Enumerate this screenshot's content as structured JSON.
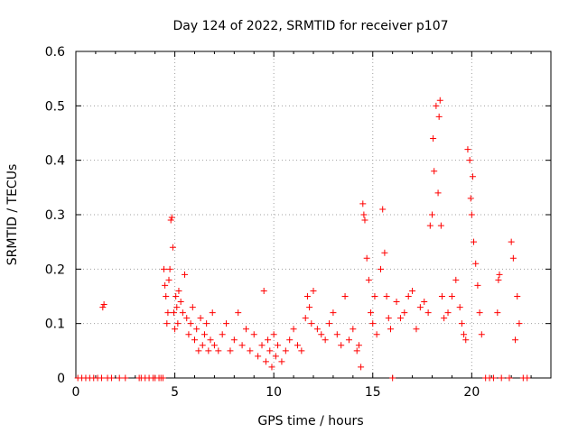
{
  "chart_data": {
    "type": "scatter",
    "title": "Day 124 of 2022, SRMTID for receiver p107",
    "xlabel": "GPS time / hours",
    "ylabel": "SRMTID / TECUs",
    "xlim": [
      0,
      24
    ],
    "ylim": [
      0,
      0.6
    ],
    "xticks": [
      0,
      5,
      10,
      15,
      20
    ],
    "yticks": [
      0,
      0.1,
      0.2,
      0.3,
      0.4,
      0.5,
      0.6
    ],
    "xtick_labels": [
      "0",
      "5",
      "10",
      "15",
      "20"
    ],
    "ytick_labels": [
      "0",
      "0.1",
      "0.2",
      "0.3",
      "0.4",
      "0.5",
      "0.6"
    ],
    "grid": true,
    "marker": "+",
    "color": "#ff0000",
    "series": [
      {
        "name": "SRMTID p107",
        "x": [
          0.1,
          0.3,
          0.5,
          0.7,
          0.9,
          1.1,
          1.3,
          1.36,
          1.42,
          1.6,
          1.8,
          2.2,
          2.5,
          3.2,
          3.3,
          3.5,
          3.7,
          3.9,
          4.0,
          4.2,
          4.3,
          4.4,
          4.45,
          4.5,
          4.55,
          4.6,
          4.65,
          4.7,
          4.75,
          4.8,
          4.85,
          4.9,
          4.95,
          5.0,
          5.05,
          5.1,
          5.15,
          5.2,
          5.3,
          5.4,
          5.5,
          5.6,
          5.7,
          5.8,
          5.9,
          6.0,
          6.1,
          6.2,
          6.3,
          6.4,
          6.5,
          6.6,
          6.7,
          6.8,
          6.9,
          7.0,
          7.2,
          7.4,
          7.6,
          7.8,
          8.0,
          8.2,
          8.4,
          8.6,
          8.8,
          9.0,
          9.2,
          9.4,
          9.5,
          9.6,
          9.7,
          9.8,
          9.9,
          10.0,
          10.1,
          10.2,
          10.4,
          10.6,
          10.8,
          11.0,
          11.2,
          11.4,
          11.6,
          11.7,
          11.8,
          11.9,
          12.0,
          12.2,
          12.4,
          12.6,
          12.8,
          13.0,
          13.2,
          13.4,
          13.6,
          13.8,
          14.0,
          14.2,
          14.3,
          14.4,
          14.5,
          14.55,
          14.6,
          14.7,
          14.8,
          14.9,
          15.0,
          15.1,
          15.2,
          15.4,
          15.5,
          15.6,
          15.7,
          15.8,
          15.9,
          16.0,
          16.2,
          16.4,
          16.6,
          16.8,
          17.0,
          17.2,
          17.4,
          17.6,
          17.8,
          17.9,
          18.0,
          18.05,
          18.1,
          18.2,
          18.3,
          18.35,
          18.4,
          18.45,
          18.5,
          18.6,
          18.8,
          19.0,
          19.2,
          19.4,
          19.5,
          19.6,
          19.7,
          19.8,
          19.9,
          19.95,
          20.0,
          20.05,
          20.1,
          20.2,
          20.3,
          20.4,
          20.5,
          20.7,
          20.9,
          21.1,
          21.3,
          21.35,
          21.4,
          21.5,
          21.9,
          22.0,
          22.1,
          22.2,
          22.3,
          22.4,
          22.6,
          22.8
        ],
        "y": [
          0,
          0,
          0,
          0,
          0,
          0,
          0,
          0.13,
          0.135,
          0,
          0,
          0,
          0,
          0,
          0,
          0,
          0,
          0,
          0,
          0,
          0,
          0.0,
          0.2,
          0.17,
          0.15,
          0.1,
          0.12,
          0.18,
          0.2,
          0.29,
          0.295,
          0.24,
          0.12,
          0.09,
          0.15,
          0.13,
          0.1,
          0.16,
          0.14,
          0.12,
          0.19,
          0.11,
          0.08,
          0.1,
          0.13,
          0.07,
          0.09,
          0.05,
          0.11,
          0.06,
          0.08,
          0.1,
          0.05,
          0.07,
          0.12,
          0.06,
          0.05,
          0.08,
          0.1,
          0.05,
          0.07,
          0.12,
          0.06,
          0.09,
          0.05,
          0.08,
          0.04,
          0.06,
          0.16,
          0.03,
          0.07,
          0.05,
          0.02,
          0.08,
          0.04,
          0.06,
          0.03,
          0.05,
          0.07,
          0.09,
          0.06,
          0.05,
          0.11,
          0.15,
          0.13,
          0.1,
          0.16,
          0.09,
          0.08,
          0.07,
          0.1,
          0.12,
          0.08,
          0.06,
          0.15,
          0.07,
          0.09,
          0.05,
          0.06,
          0.02,
          0.32,
          0.3,
          0.29,
          0.22,
          0.18,
          0.12,
          0.1,
          0.15,
          0.08,
          0.2,
          0.31,
          0.23,
          0.15,
          0.11,
          0.09,
          0.0,
          0.14,
          0.11,
          0.12,
          0.15,
          0.16,
          0.09,
          0.13,
          0.14,
          0.12,
          0.28,
          0.3,
          0.44,
          0.38,
          0.5,
          0.34,
          0.48,
          0.51,
          0.28,
          0.15,
          0.11,
          0.12,
          0.15,
          0.18,
          0.13,
          0.1,
          0.08,
          0.07,
          0.42,
          0.4,
          0.33,
          0.3,
          0.37,
          0.25,
          0.21,
          0.17,
          0.12,
          0.08,
          0.0,
          0.0,
          0.0,
          0.12,
          0.18,
          0.19,
          0.0,
          0.0,
          0.25,
          0.22,
          0.07,
          0.15,
          0.1,
          0.0,
          0.0
        ]
      }
    ]
  }
}
